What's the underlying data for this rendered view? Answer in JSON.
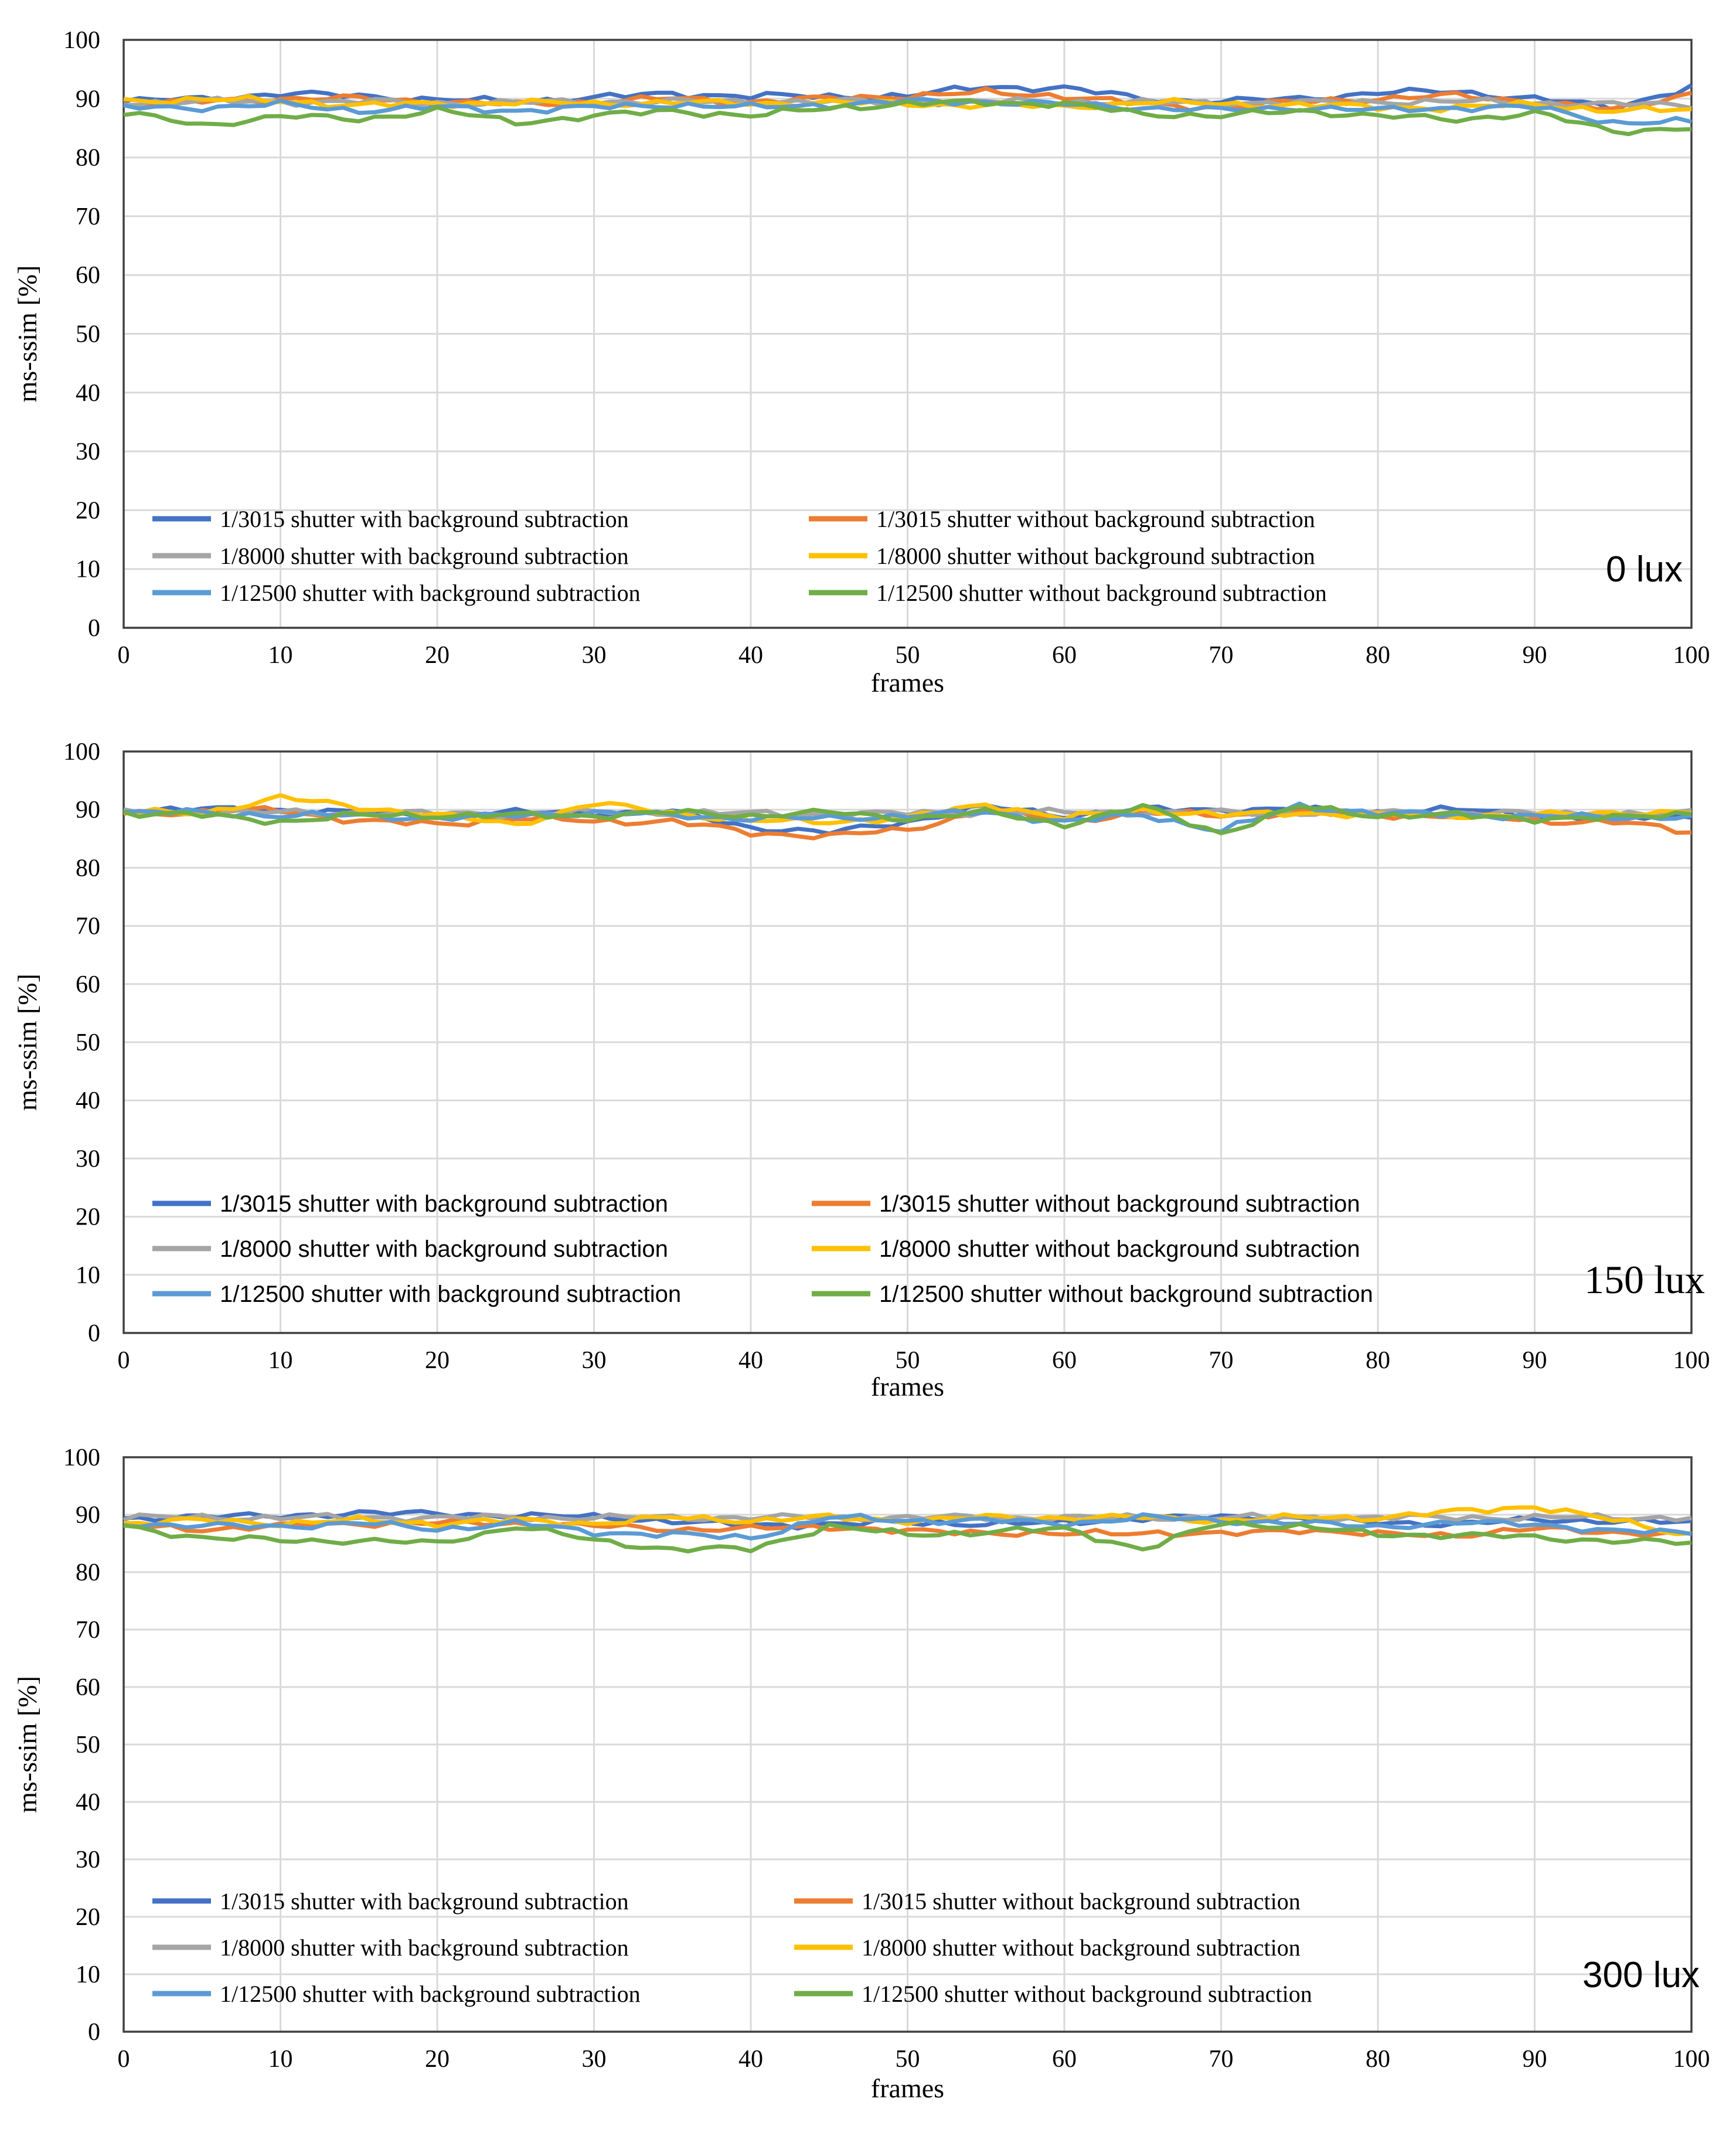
{
  "chart_data": [
    {
      "type": "line",
      "annotation": "0 lux",
      "xlabel": "frames",
      "ylabel": "ms-ssim [%]",
      "xlim": [
        0,
        100
      ],
      "ylim": [
        0,
        100
      ],
      "xticks": [
        "0",
        "10",
        "20",
        "30",
        "40",
        "50",
        "60",
        "70",
        "80",
        "90",
        "100"
      ],
      "yticks": [
        "0",
        "10",
        "20",
        "30",
        "40",
        "50",
        "60",
        "70",
        "80",
        "90",
        "100"
      ],
      "x_knots": [
        0,
        5,
        10,
        15,
        20,
        25,
        30,
        35,
        40,
        45,
        50,
        55,
        60,
        65,
        70,
        75,
        80,
        85,
        90,
        95,
        100
      ],
      "series": [
        {
          "name": "1/3015 shutter with background subtraction",
          "color": "#4472c4",
          "values": [
            89.5,
            90.0,
            90.8,
            90.5,
            89.8,
            89.5,
            90.2,
            90.8,
            90.5,
            90.3,
            90.5,
            92.0,
            91.8,
            90.0,
            89.5,
            90.0,
            91.0,
            91.2,
            90.0,
            88.5,
            92.0
          ]
        },
        {
          "name": "1/3015 shutter without background subtraction",
          "color": "#ed7d31",
          "values": [
            89.0,
            89.5,
            90.0,
            90.0,
            89.5,
            89.0,
            89.5,
            90.0,
            89.5,
            90.0,
            90.5,
            91.0,
            90.5,
            89.0,
            88.5,
            89.5,
            90.0,
            90.5,
            89.5,
            88.0,
            91.0
          ]
        },
        {
          "name": "1/8000 shutter with background subtraction",
          "color": "#a5a5a5",
          "values": [
            89.3,
            89.5,
            89.5,
            89.5,
            89.3,
            89.3,
            89.5,
            89.5,
            89.5,
            89.5,
            89.5,
            89.5,
            89.5,
            89.3,
            89.3,
            89.3,
            89.5,
            89.5,
            89.3,
            89.0,
            89.0
          ]
        },
        {
          "name": "1/8000 shutter without background subtraction",
          "color": "#ffc000",
          "values": [
            89.5,
            90.0,
            89.5,
            89.0,
            89.0,
            89.5,
            89.0,
            89.5,
            89.0,
            89.5,
            89.0,
            89.0,
            88.5,
            89.5,
            89.0,
            89.0,
            88.5,
            88.5,
            89.0,
            88.0,
            88.0
          ]
        },
        {
          "name": "1/12500 shutter with background subtraction",
          "color": "#5b9bd5",
          "values": [
            88.5,
            88.5,
            89.0,
            88.0,
            88.5,
            88.0,
            88.5,
            89.0,
            88.5,
            89.0,
            89.5,
            89.5,
            89.0,
            88.5,
            88.0,
            88.5,
            88.0,
            88.5,
            88.5,
            86.0,
            86.0
          ]
        },
        {
          "name": "1/12500 shutter without background subtraction",
          "color": "#70ad47",
          "values": [
            87.5,
            85.5,
            87.0,
            86.5,
            88.0,
            86.0,
            87.0,
            88.0,
            87.0,
            88.5,
            89.0,
            89.5,
            89.0,
            87.5,
            87.0,
            88.0,
            87.0,
            86.5,
            87.5,
            84.5,
            85.0
          ]
        }
      ]
    },
    {
      "type": "line",
      "annotation": "150 lux",
      "xlabel": "frames",
      "ylabel": "ms-ssim [%]",
      "xlim": [
        0,
        100
      ],
      "ylim": [
        0,
        100
      ],
      "xticks": [
        "0",
        "10",
        "20",
        "30",
        "40",
        "50",
        "60",
        "70",
        "80",
        "90",
        "100"
      ],
      "yticks": [
        "0",
        "10",
        "20",
        "30",
        "40",
        "50",
        "60",
        "70",
        "80",
        "90",
        "100"
      ],
      "x_knots": [
        0,
        5,
        10,
        15,
        20,
        25,
        30,
        35,
        40,
        45,
        50,
        55,
        60,
        65,
        70,
        75,
        80,
        85,
        90,
        95,
        100
      ],
      "series": [
        {
          "name": "1/3015 shutter with background subtraction",
          "color": "#4472c4",
          "values": [
            90.0,
            90.0,
            90.0,
            89.5,
            89.0,
            89.5,
            89.5,
            89.5,
            87.0,
            86.0,
            88.0,
            90.5,
            89.0,
            90.0,
            90.0,
            90.0,
            89.5,
            90.0,
            89.0,
            88.5,
            89.0
          ]
        },
        {
          "name": "1/3015 shutter without background subtraction",
          "color": "#ed7d31",
          "values": [
            89.5,
            89.5,
            90.0,
            88.0,
            87.5,
            88.5,
            88.0,
            88.0,
            86.0,
            85.5,
            86.5,
            90.0,
            88.0,
            89.5,
            89.0,
            89.5,
            89.0,
            89.0,
            88.0,
            88.0,
            86.0
          ]
        },
        {
          "name": "1/8000 shutter with background subtraction",
          "color": "#a5a5a5",
          "values": [
            89.5,
            89.5,
            89.5,
            89.5,
            89.3,
            89.3,
            89.5,
            89.5,
            89.3,
            89.3,
            89.3,
            89.5,
            89.5,
            89.5,
            89.5,
            89.5,
            89.5,
            89.5,
            89.3,
            89.3,
            89.3
          ]
        },
        {
          "name": "1/8000 shutter without background subtraction",
          "color": "#ffc000",
          "values": [
            89.5,
            89.5,
            92.0,
            90.5,
            89.0,
            87.5,
            91.0,
            89.5,
            88.0,
            88.0,
            88.5,
            91.0,
            88.5,
            90.0,
            89.0,
            89.5,
            89.0,
            89.0,
            89.0,
            89.5,
            89.5
          ]
        },
        {
          "name": "1/12500 shutter with background subtraction",
          "color": "#5b9bd5",
          "values": [
            89.5,
            89.5,
            89.0,
            89.0,
            88.5,
            89.0,
            89.5,
            89.0,
            88.5,
            88.5,
            89.0,
            89.5,
            88.0,
            89.0,
            86.5,
            90.5,
            89.5,
            89.0,
            89.0,
            88.5,
            89.0
          ]
        },
        {
          "name": "1/12500 shutter without background subtraction",
          "color": "#70ad47",
          "values": [
            89.5,
            89.0,
            88.0,
            89.0,
            89.0,
            89.0,
            89.0,
            89.5,
            89.0,
            89.5,
            88.5,
            89.5,
            87.5,
            90.5,
            86.0,
            90.5,
            89.0,
            89.0,
            88.5,
            88.5,
            89.5
          ]
        }
      ]
    },
    {
      "type": "line",
      "annotation": "300 lux",
      "xlabel": "frames",
      "ylabel": "ms-ssim [%]",
      "xlim": [
        0,
        100
      ],
      "ylim": [
        0,
        100
      ],
      "xticks": [
        "0",
        "10",
        "20",
        "30",
        "40",
        "50",
        "60",
        "70",
        "80",
        "90",
        "100"
      ],
      "yticks": [
        "0",
        "10",
        "20",
        "30",
        "40",
        "50",
        "60",
        "70",
        "80",
        "90",
        "100"
      ],
      "x_knots": [
        0,
        5,
        10,
        15,
        20,
        25,
        30,
        35,
        40,
        45,
        50,
        55,
        60,
        65,
        70,
        75,
        80,
        85,
        90,
        95,
        100
      ],
      "series": [
        {
          "name": "1/3015 shutter with background subtraction",
          "color": "#4472c4",
          "values": [
            89.0,
            90.0,
            89.5,
            90.5,
            90.0,
            90.0,
            89.5,
            89.0,
            88.0,
            88.5,
            88.5,
            88.5,
            88.5,
            89.5,
            89.5,
            89.5,
            88.5,
            88.5,
            89.0,
            89.0,
            88.5
          ]
        },
        {
          "name": "1/3015 shutter without background subtraction",
          "color": "#ed7d31",
          "values": [
            88.0,
            87.5,
            88.0,
            88.5,
            88.5,
            88.5,
            88.0,
            87.5,
            87.5,
            88.0,
            87.0,
            87.0,
            86.5,
            87.0,
            86.5,
            87.5,
            86.5,
            86.5,
            87.5,
            87.0,
            86.5
          ]
        },
        {
          "name": "1/8000 shutter with background subtraction",
          "color": "#a5a5a5",
          "values": [
            89.5,
            89.5,
            89.5,
            89.5,
            89.5,
            89.5,
            89.5,
            89.5,
            89.5,
            89.5,
            89.5,
            89.5,
            89.5,
            89.5,
            89.5,
            89.5,
            89.5,
            89.5,
            89.5,
            89.5,
            89.5
          ]
        },
        {
          "name": "1/8000 shutter without background subtraction",
          "color": "#ffc000",
          "values": [
            88.5,
            89.0,
            88.5,
            89.0,
            88.5,
            89.0,
            88.5,
            89.5,
            89.0,
            89.5,
            89.0,
            89.5,
            89.5,
            89.5,
            89.0,
            89.5,
            89.5,
            90.5,
            91.5,
            89.0,
            86.5
          ]
        },
        {
          "name": "1/12500 shutter with background subtraction",
          "color": "#5b9bd5",
          "values": [
            88.5,
            88.0,
            88.0,
            88.5,
            87.5,
            88.5,
            87.0,
            86.5,
            86.0,
            89.5,
            89.0,
            89.0,
            88.5,
            89.5,
            89.0,
            88.5,
            88.0,
            88.5,
            88.5,
            87.0,
            87.0
          ]
        },
        {
          "name": "1/12500 shutter without background subtraction",
          "color": "#70ad47",
          "values": [
            88.0,
            86.0,
            85.5,
            85.5,
            85.0,
            88.0,
            85.5,
            84.0,
            84.0,
            88.0,
            86.5,
            87.0,
            87.5,
            84.0,
            88.5,
            88.0,
            86.5,
            86.5,
            86.0,
            85.5,
            85.0
          ]
        }
      ]
    }
  ]
}
